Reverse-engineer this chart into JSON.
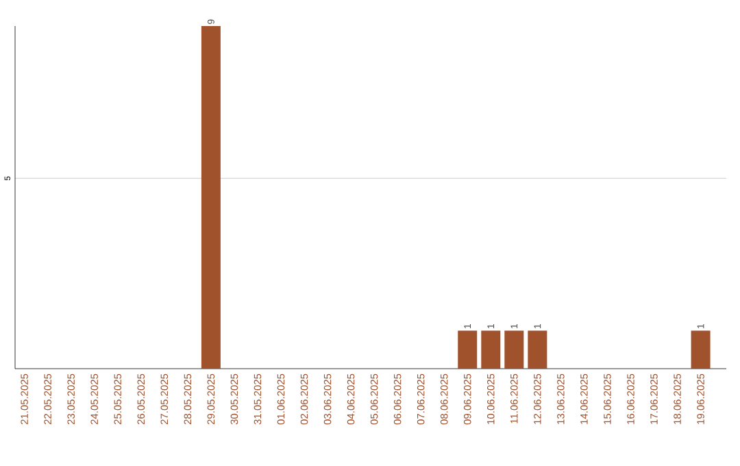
{
  "chart_data": {
    "type": "bar",
    "categories": [
      "21.05.2025",
      "22.05.2025",
      "23.05.2025",
      "24.05.2025",
      "25.05.2025",
      "26.05.2025",
      "27.05.2025",
      "28.05.2025",
      "29.05.2025",
      "30.05.2025",
      "31.05.2025",
      "01.06.2025",
      "02.06.2025",
      "03.06.2025",
      "04.06.2025",
      "05.06.2025",
      "06.06.2025",
      "07.06.2025",
      "08.06.2025",
      "09.06.2025",
      "10.06.2025",
      "11.06.2025",
      "12.06.2025",
      "13.06.2025",
      "14.06.2025",
      "15.06.2025",
      "16.06.2025",
      "17.06.2025",
      "18.06.2025",
      "19.06.2025"
    ],
    "values": [
      0,
      0,
      0,
      0,
      0,
      0,
      0,
      0,
      9,
      0,
      0,
      0,
      0,
      0,
      0,
      0,
      0,
      0,
      0,
      1,
      1,
      1,
      1,
      0,
      0,
      0,
      0,
      0,
      0,
      1
    ],
    "color": "#a0522d",
    "ylim": [
      0,
      9
    ],
    "yticks": [
      5
    ],
    "grid": "y",
    "value_labels": [
      null,
      null,
      null,
      null,
      null,
      null,
      null,
      null,
      "9",
      null,
      null,
      null,
      null,
      null,
      null,
      null,
      null,
      null,
      null,
      "1",
      "1",
      "1",
      "1",
      null,
      null,
      null,
      null,
      null,
      null,
      "1"
    ]
  }
}
